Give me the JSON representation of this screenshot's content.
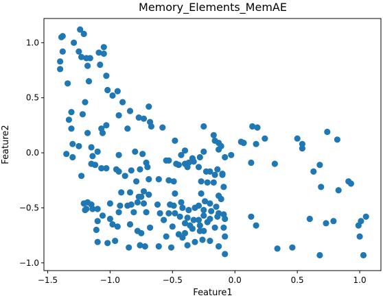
{
  "chart_data": {
    "type": "scatter",
    "title": "Memory_Elements_MemAE",
    "xlabel": "Feature1",
    "ylabel": "Feature2",
    "xlim": [
      -1.53,
      1.17
    ],
    "ylim": [
      -1.07,
      1.22
    ],
    "x_ticks": [
      -1.5,
      -1.0,
      -0.5,
      0.0,
      0.5,
      1.0
    ],
    "y_ticks": [
      -1.0,
      -0.5,
      0.0,
      0.5,
      1.0
    ],
    "x_tick_labels": [
      "−1.5",
      "−1.0",
      "−0.5",
      "0.0",
      "0.5",
      "1.0"
    ],
    "y_tick_labels": [
      "−1.0",
      "−0.5",
      "0.0",
      "0.5",
      "1.0"
    ],
    "grid": false,
    "marker_color": "#1f77b4",
    "points": [
      [
        -1.39,
        1.05
      ],
      [
        -1.38,
        1.06
      ],
      [
        -1.24,
        1.12
      ],
      [
        -1.21,
        1.08
      ],
      [
        -1.29,
        1.0
      ],
      [
        -1.38,
        0.92
      ],
      [
        -1.25,
        0.92
      ],
      [
        -1.16,
        0.86
      ],
      [
        -1.09,
        0.91
      ],
      [
        -1.05,
        0.96
      ],
      [
        -1.05,
        0.9
      ],
      [
        -1.4,
        0.83
      ],
      [
        -1.4,
        0.76
      ],
      [
        -1.23,
        0.87
      ],
      [
        -1.19,
        0.86
      ],
      [
        -1.18,
        0.79
      ],
      [
        -1.08,
        0.8
      ],
      [
        -1.03,
        0.7
      ],
      [
        -1.17,
        0.65
      ],
      [
        -1.34,
        0.63
      ],
      [
        -1.02,
        0.57
      ],
      [
        -0.98,
        0.52
      ],
      [
        -0.94,
        0.56
      ],
      [
        -1.2,
        0.46
      ],
      [
        -0.9,
        0.46
      ],
      [
        -0.84,
        0.38
      ],
      [
        -0.69,
        0.42
      ],
      [
        -1.31,
        0.37
      ],
      [
        -1.22,
        0.35
      ],
      [
        -0.93,
        0.34
      ],
      [
        -0.77,
        0.32
      ],
      [
        -0.73,
        0.31
      ],
      [
        -1.33,
        0.3
      ],
      [
        -1.31,
        0.22
      ],
      [
        -1.07,
        0.22
      ],
      [
        -1.18,
        0.18
      ],
      [
        -1.03,
        0.25
      ],
      [
        -1.06,
        0.18
      ],
      [
        -0.86,
        0.22
      ],
      [
        -0.68,
        0.28
      ],
      [
        -0.67,
        0.24
      ],
      [
        -0.58,
        0.23
      ],
      [
        -0.25,
        0.24
      ],
      [
        -0.17,
        0.16
      ],
      [
        -0.16,
        0.11
      ],
      [
        -0.13,
        0.09
      ],
      [
        0.14,
        0.24
      ],
      [
        0.18,
        0.23
      ],
      [
        0.05,
        0.1
      ],
      [
        0.07,
        0.09
      ],
      [
        0.17,
        0.08
      ],
      [
        0.24,
        0.13
      ],
      [
        0.5,
        0.13
      ],
      [
        0.54,
        0.08
      ],
      [
        0.54,
        0.04
      ],
      [
        0.74,
        0.19
      ],
      [
        0.82,
        0.12
      ],
      [
        -1.3,
        0.08
      ],
      [
        -1.25,
        0.06
      ],
      [
        -1.15,
        0.05
      ],
      [
        -1.1,
        0.01
      ],
      [
        -0.93,
        -0.02
      ],
      [
        -0.8,
        0.01
      ],
      [
        -0.74,
        -0.01
      ],
      [
        -0.48,
        0.11
      ],
      [
        -0.4,
        0.02
      ],
      [
        -0.43,
        -0.02
      ],
      [
        -0.34,
        -0.05
      ],
      [
        -0.28,
        -0.04
      ],
      [
        -0.25,
        0.01
      ],
      [
        -0.11,
        0.06
      ],
      [
        -0.13,
        0.03
      ],
      [
        -0.08,
        -0.04
      ],
      [
        -0.03,
        -0.02
      ],
      [
        0.13,
        -0.09
      ],
      [
        0.32,
        -0.1
      ],
      [
        0.63,
        -0.17
      ],
      [
        0.68,
        -0.11
      ],
      [
        -1.35,
        -0.01
      ],
      [
        -1.3,
        -0.04
      ],
      [
        -1.14,
        -0.03
      ],
      [
        -1.12,
        -0.11
      ],
      [
        -1.07,
        -0.14
      ],
      [
        -1.15,
        -0.1
      ],
      [
        -1.03,
        -0.14
      ],
      [
        -0.95,
        -0.15
      ],
      [
        -0.93,
        -0.17
      ],
      [
        -0.83,
        -0.16
      ],
      [
        -0.76,
        -0.15
      ],
      [
        -0.7,
        -0.13
      ],
      [
        -0.71,
        -0.09
      ],
      [
        -0.55,
        -0.07
      ],
      [
        -0.53,
        -0.07
      ],
      [
        -0.47,
        -0.1
      ],
      [
        -0.45,
        -0.11
      ],
      [
        -0.4,
        -0.1
      ],
      [
        -0.38,
        -0.13
      ],
      [
        -0.37,
        -0.09
      ],
      [
        -0.33,
        -0.08
      ],
      [
        -0.29,
        -0.13
      ],
      [
        -0.23,
        -0.17
      ],
      [
        -0.2,
        -0.17
      ],
      [
        -0.14,
        -0.15
      ],
      [
        -0.1,
        -0.19
      ],
      [
        -0.16,
        -0.2
      ],
      [
        -1.23,
        -0.21
      ],
      [
        -0.88,
        -0.21
      ],
      [
        -0.79,
        -0.26
      ],
      [
        -0.69,
        -0.24
      ],
      [
        -0.61,
        -0.24
      ],
      [
        -0.53,
        -0.25
      ],
      [
        -0.49,
        -0.26
      ],
      [
        -0.27,
        -0.26
      ],
      [
        -0.22,
        -0.27
      ],
      [
        -0.17,
        -0.27
      ],
      [
        -0.09,
        -0.31
      ],
      [
        -0.1,
        -0.2
      ],
      [
        0.69,
        -0.31
      ],
      [
        0.83,
        -0.34
      ],
      [
        0.91,
        -0.26
      ],
      [
        0.93,
        -0.28
      ],
      [
        -0.91,
        -0.36
      ],
      [
        -0.84,
        -0.36
      ],
      [
        -0.75,
        -0.4
      ],
      [
        -0.73,
        -0.35
      ],
      [
        -0.69,
        -0.38
      ],
      [
        -0.77,
        -0.4
      ],
      [
        -0.48,
        -0.37
      ],
      [
        -0.43,
        -0.45
      ],
      [
        -0.27,
        -0.37
      ],
      [
        -0.13,
        -0.39
      ],
      [
        -0.11,
        -0.42
      ],
      [
        -0.24,
        -0.44
      ],
      [
        -0.29,
        -0.48
      ],
      [
        -0.2,
        -0.46
      ],
      [
        -0.15,
        -0.49
      ],
      [
        -1.21,
        -0.46
      ],
      [
        -1.18,
        -0.45
      ],
      [
        -1.15,
        -0.47
      ],
      [
        -1.19,
        -0.51
      ],
      [
        -1.14,
        -0.51
      ],
      [
        -1.1,
        -0.51
      ],
      [
        -1.0,
        -0.46
      ],
      [
        -0.92,
        -0.48
      ],
      [
        -0.86,
        -0.48
      ],
      [
        -0.83,
        -0.47
      ],
      [
        -0.78,
        -0.45
      ],
      [
        -0.73,
        -0.46
      ],
      [
        -0.62,
        -0.47
      ],
      [
        -0.52,
        -0.47
      ],
      [
        -0.49,
        -0.48
      ],
      [
        -0.42,
        -0.5
      ],
      [
        -0.37,
        -0.52
      ],
      [
        -0.32,
        -0.5
      ],
      [
        -0.25,
        -0.52
      ],
      [
        -0.19,
        -0.53
      ],
      [
        -0.13,
        -0.55
      ],
      [
        -0.09,
        -0.56
      ],
      [
        -0.14,
        -0.58
      ],
      [
        -0.2,
        -0.6
      ],
      [
        -0.25,
        -0.57
      ],
      [
        -0.29,
        -0.61
      ],
      [
        -0.33,
        -0.61
      ],
      [
        -0.38,
        -0.59
      ],
      [
        -0.48,
        -0.55
      ],
      [
        -0.53,
        -0.55
      ],
      [
        -0.6,
        -0.55
      ],
      [
        -0.71,
        -0.54
      ],
      [
        -0.81,
        -0.54
      ],
      [
        -0.93,
        -0.54
      ],
      [
        -1.0,
        -0.6
      ],
      [
        -1.2,
        -0.52
      ],
      [
        -1.06,
        -0.57
      ],
      [
        -0.98,
        -0.65
      ],
      [
        -1.1,
        -0.62
      ],
      [
        -0.84,
        -0.65
      ],
      [
        -0.57,
        -0.61
      ],
      [
        -0.44,
        -0.58
      ],
      [
        -0.4,
        -0.64
      ],
      [
        -0.36,
        -0.66
      ],
      [
        -0.28,
        -0.66
      ],
      [
        -0.22,
        -0.63
      ],
      [
        -0.08,
        -0.6
      ],
      [
        0.13,
        -0.58
      ],
      [
        0.17,
        -0.66
      ],
      [
        0.6,
        -0.6
      ],
      [
        0.73,
        -0.64
      ],
      [
        0.79,
        -0.62
      ],
      [
        0.99,
        -0.66
      ],
      [
        1.01,
        -0.62
      ],
      [
        1.05,
        -0.58
      ],
      [
        -1.11,
        -0.7
      ],
      [
        -0.94,
        -0.67
      ],
      [
        -0.78,
        -0.71
      ],
      [
        -0.75,
        -0.73
      ],
      [
        -0.68,
        -0.68
      ],
      [
        -0.5,
        -0.67
      ],
      [
        -0.4,
        -0.73
      ],
      [
        -0.34,
        -0.69
      ],
      [
        -0.28,
        -0.71
      ],
      [
        -0.25,
        -0.71
      ],
      [
        -0.16,
        -0.68
      ],
      [
        -0.09,
        -0.68
      ],
      [
        -0.08,
        -0.76
      ],
      [
        -0.55,
        -0.76
      ],
      [
        -0.45,
        -0.74
      ],
      [
        -0.42,
        -0.77
      ],
      [
        -0.32,
        -0.81
      ],
      [
        -0.26,
        -0.79
      ],
      [
        -0.2,
        -0.8
      ],
      [
        -1.1,
        -0.81
      ],
      [
        -1.02,
        -0.82
      ],
      [
        -0.96,
        -0.8
      ],
      [
        -0.85,
        -0.86
      ],
      [
        -0.76,
        -0.84
      ],
      [
        -0.72,
        -0.85
      ],
      [
        -0.61,
        -0.85
      ],
      [
        -0.51,
        -0.86
      ],
      [
        -0.38,
        -0.84
      ],
      [
        -0.13,
        -0.85
      ],
      [
        -0.08,
        -0.92
      ],
      [
        0.34,
        -0.87
      ],
      [
        0.46,
        -0.86
      ],
      [
        0.68,
        -0.93
      ],
      [
        1.0,
        -0.76
      ],
      [
        1.03,
        -0.93
      ]
    ]
  }
}
